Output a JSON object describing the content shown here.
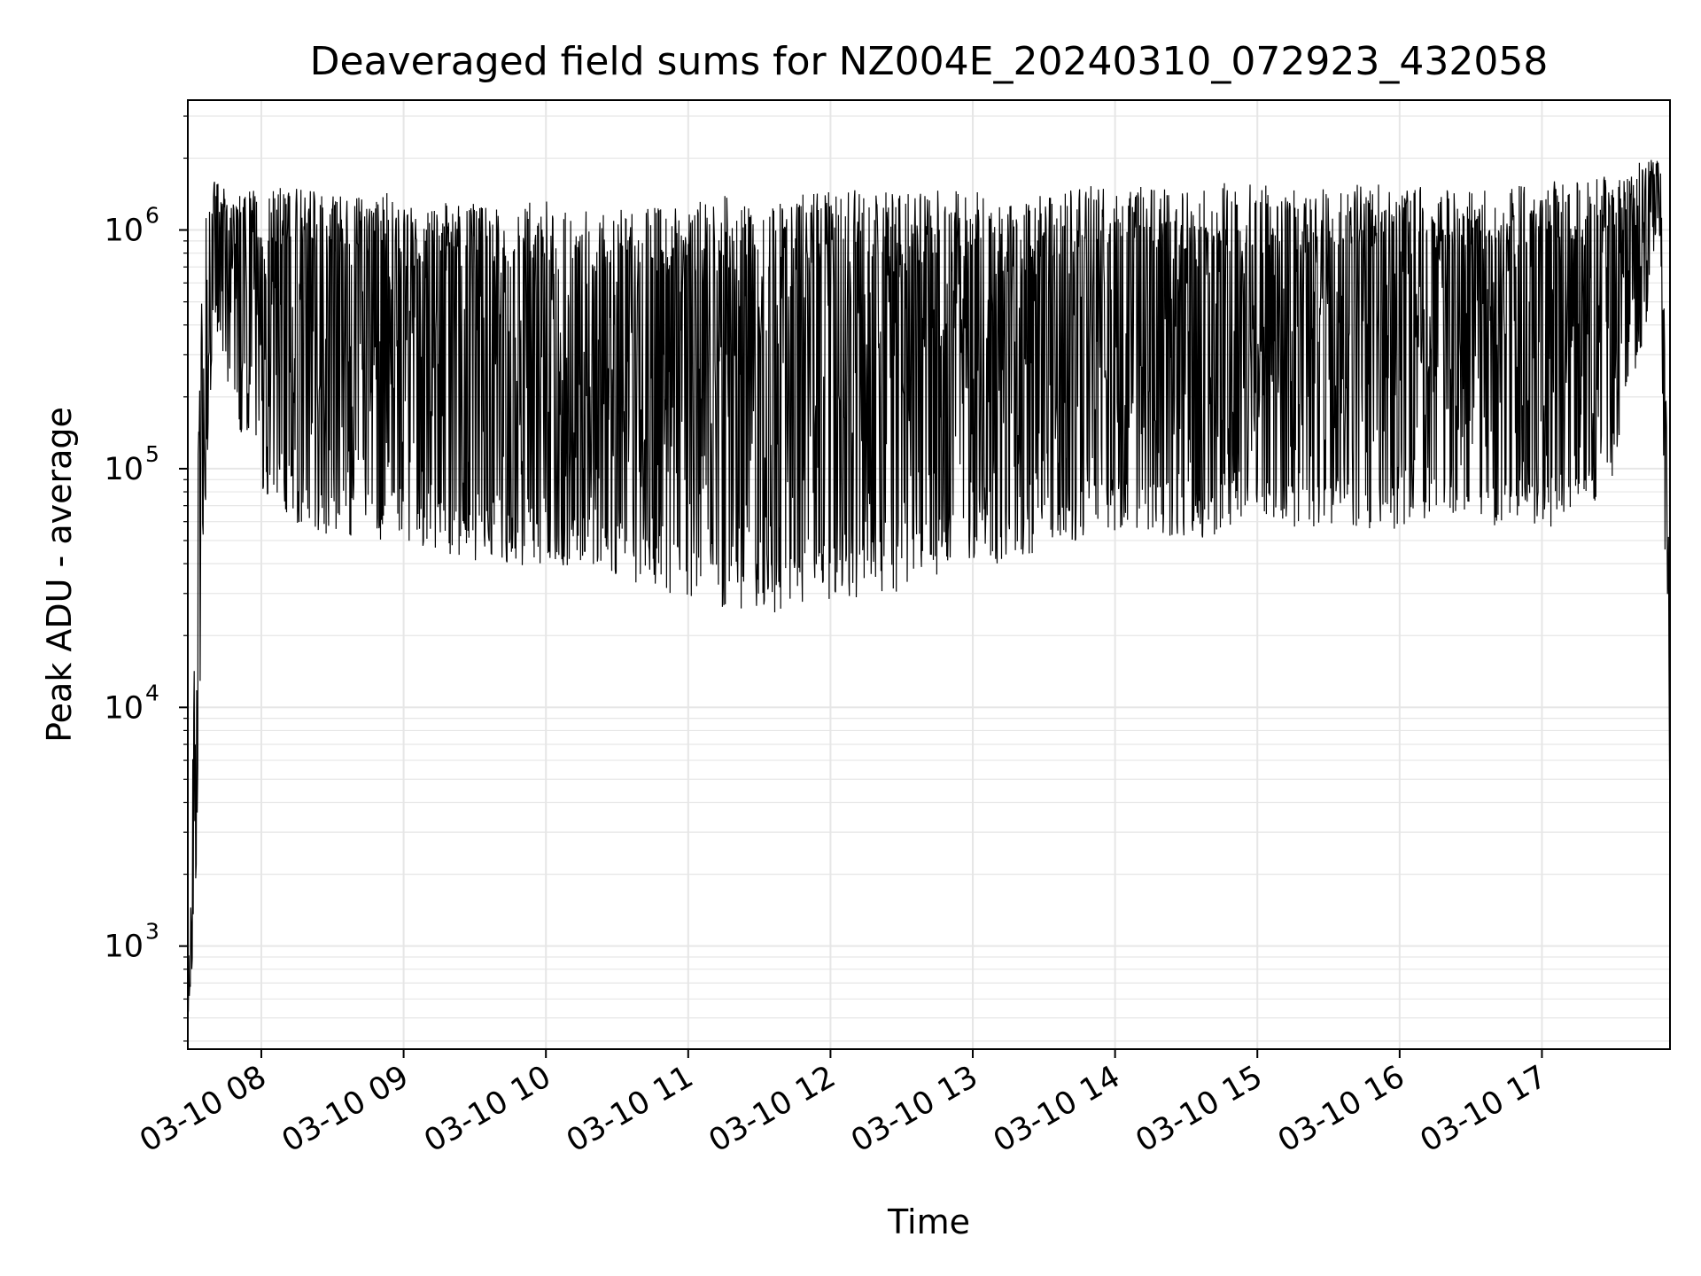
{
  "chart_data": {
    "type": "line",
    "title": "Deaveraged field sums for NZ004E_20240310_072923_432058",
    "xlabel": "Time",
    "ylabel": "Peak ADU - average",
    "yscale": "log",
    "xlim": [
      "2024-03-10 07:29",
      "2024-03-10 17:54"
    ],
    "ylim": [
      370,
      3500000
    ],
    "grid": true,
    "legend": "none",
    "line_color": "#000000",
    "grid_color": "#e6e6e6",
    "x_ticks": [
      {
        "value": "2024-03-10 08:00",
        "label": "03-10 08"
      },
      {
        "value": "2024-03-10 09:00",
        "label": "03-10 09"
      },
      {
        "value": "2024-03-10 10:00",
        "label": "03-10 10"
      },
      {
        "value": "2024-03-10 11:00",
        "label": "03-10 11"
      },
      {
        "value": "2024-03-10 12:00",
        "label": "03-10 12"
      },
      {
        "value": "2024-03-10 13:00",
        "label": "03-10 13"
      },
      {
        "value": "2024-03-10 14:00",
        "label": "03-10 14"
      },
      {
        "value": "2024-03-10 15:00",
        "label": "03-10 15"
      },
      {
        "value": "2024-03-10 16:00",
        "label": "03-10 16"
      },
      {
        "value": "2024-03-10 17:00",
        "label": "03-10 17"
      }
    ],
    "y_ticks": [
      {
        "value": 1000,
        "base": "10",
        "exp": "3"
      },
      {
        "value": 10000,
        "base": "10",
        "exp": "4"
      },
      {
        "value": 100000,
        "base": "10",
        "exp": "5"
      },
      {
        "value": 1000000,
        "base": "10",
        "exp": "6"
      }
    ],
    "series": [
      {
        "envelope": {
          "x": [
            "2024-03-10 07:29",
            "2024-03-10 07:32",
            "2024-03-10 07:35",
            "2024-03-10 07:40",
            "2024-03-10 07:50",
            "2024-03-10 08:00",
            "2024-03-10 08:15",
            "2024-03-10 08:30",
            "2024-03-10 08:45",
            "2024-03-10 09:00",
            "2024-03-10 09:15",
            "2024-03-10 09:30",
            "2024-03-10 09:45",
            "2024-03-10 10:00",
            "2024-03-10 10:15",
            "2024-03-10 10:30",
            "2024-03-10 10:45",
            "2024-03-10 11:00",
            "2024-03-10 11:15",
            "2024-03-10 11:30",
            "2024-03-10 11:45",
            "2024-03-10 12:00",
            "2024-03-10 12:15",
            "2024-03-10 12:30",
            "2024-03-10 12:45",
            "2024-03-10 13:00",
            "2024-03-10 13:15",
            "2024-03-10 13:30",
            "2024-03-10 13:45",
            "2024-03-10 14:00",
            "2024-03-10 14:15",
            "2024-03-10 14:30",
            "2024-03-10 14:45",
            "2024-03-10 15:00",
            "2024-03-10 15:15",
            "2024-03-10 15:30",
            "2024-03-10 15:45",
            "2024-03-10 16:00",
            "2024-03-10 16:15",
            "2024-03-10 16:30",
            "2024-03-10 16:45",
            "2024-03-10 17:00",
            "2024-03-10 17:15",
            "2024-03-10 17:30",
            "2024-03-10 17:45",
            "2024-03-10 17:50",
            "2024-03-10 17:54"
          ],
          "upper": [
            600,
            20000,
            1000000,
            1600000,
            1400000,
            1500000,
            1500000,
            1400000,
            1500000,
            1400000,
            1300000,
            1300000,
            1200000,
            1400000,
            1200000,
            1300000,
            1300000,
            1300000,
            1400000,
            1300000,
            1400000,
            1500000,
            1500000,
            1400000,
            1500000,
            1500000,
            1300000,
            1400000,
            1500000,
            1600000,
            1500000,
            1500000,
            1600000,
            1600000,
            1500000,
            1500000,
            1600000,
            1600000,
            1500000,
            1500000,
            1500000,
            1600000,
            1600000,
            1700000,
            2000000,
            2200000,
            40000
          ],
          "lower": [
            500,
            1000,
            30000,
            400000,
            150000,
            80000,
            55000,
            50000,
            50000,
            50000,
            45000,
            40000,
            38000,
            40000,
            38000,
            35000,
            32000,
            28000,
            26000,
            24000,
            25000,
            28000,
            28000,
            30000,
            35000,
            40000,
            40000,
            45000,
            50000,
            55000,
            55000,
            50000,
            50000,
            55000,
            55000,
            55000,
            55000,
            55000,
            55000,
            55000,
            55000,
            55000,
            60000,
            90000,
            450000,
            900000,
            900
          ]
        }
      }
    ]
  }
}
